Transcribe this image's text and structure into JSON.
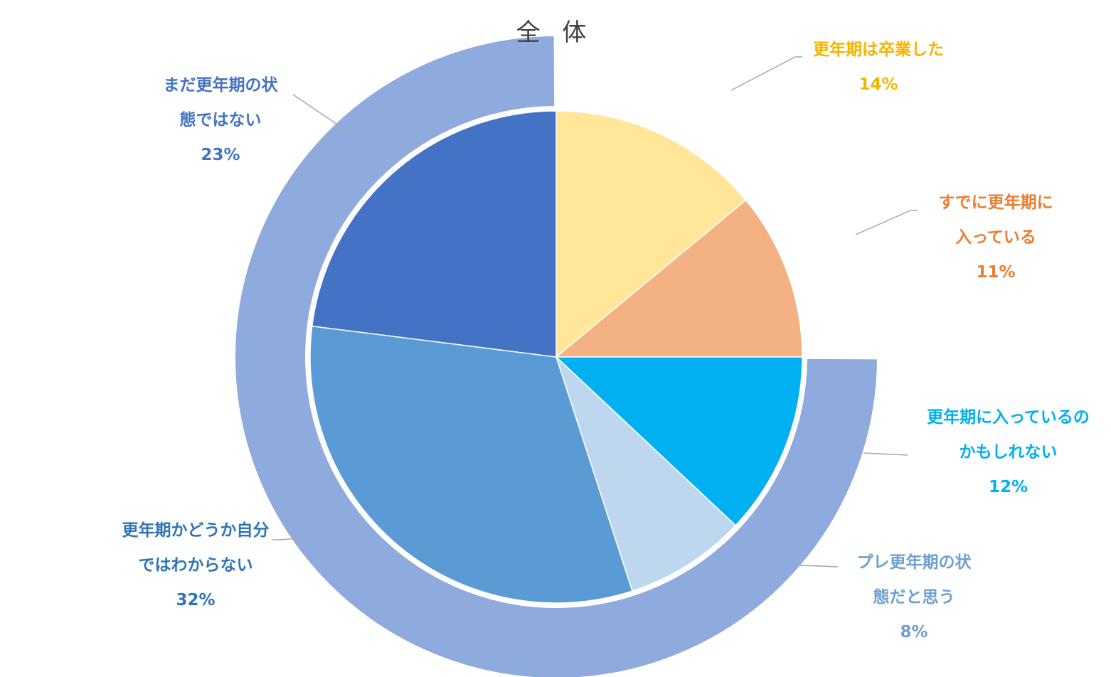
{
  "chart_data": {
    "type": "pie",
    "title": "全 体",
    "center_label": "",
    "inner_ring": {
      "slices": [
        {
          "label": "更年期は卒業した",
          "value": 14,
          "percent_text": "14%",
          "color": "#FFE699",
          "label_color": "#F4B400"
        },
        {
          "label": "すでに更年期に入っている",
          "value": 11,
          "percent_text": "11%",
          "color": "#F4B183",
          "label_color": "#ED7D31"
        },
        {
          "label": "更年期に入っているのかもしれない",
          "value": 12,
          "percent_text": "12%",
          "color": "#00B0F0",
          "label_color": "#00B0F0"
        },
        {
          "label": "プレ更年期の状態だと思う",
          "value": 8,
          "percent_text": "8%",
          "color": "#BDD7EE",
          "label_color": "#6D9FCF"
        },
        {
          "label": "更年期かどうか自分ではわからない",
          "value": 32,
          "percent_text": "32%",
          "color": "#5B9BD5",
          "label_color": "#2E75B6"
        },
        {
          "label": "まだ更年期の状態ではない",
          "value": 23,
          "percent_text": "23%",
          "color": "#4472C4",
          "label_color": "#4472C4"
        }
      ]
    },
    "outer_ring": {
      "slices": [
        {
          "group": "experienced",
          "value": 25,
          "color": "#F8CBAD"
        },
        {
          "group": "not-yet",
          "value": 75,
          "color": "#8FAADC"
        }
      ]
    },
    "legend": "none",
    "labels": {
      "s0": {
        "lines": [
          "更年期は卒業した"
        ],
        "percent": "14%"
      },
      "s1": {
        "lines": [
          "すでに更年期に",
          "入っている"
        ],
        "percent": "11%"
      },
      "s2": {
        "lines": [
          "更年期に入っているの",
          "かもしれない"
        ],
        "percent": "12%"
      },
      "s3": {
        "lines": [
          "プレ更年期の状",
          "態だと思う"
        ],
        "percent": "8%"
      },
      "s4": {
        "lines": [
          "更年期かどうか自分",
          "ではわからない"
        ],
        "percent": "32%"
      },
      "s5": {
        "lines": [
          "まだ更年期の状",
          "態ではない"
        ],
        "percent": "23%"
      }
    },
    "leader_color": "#A6A6A6"
  }
}
